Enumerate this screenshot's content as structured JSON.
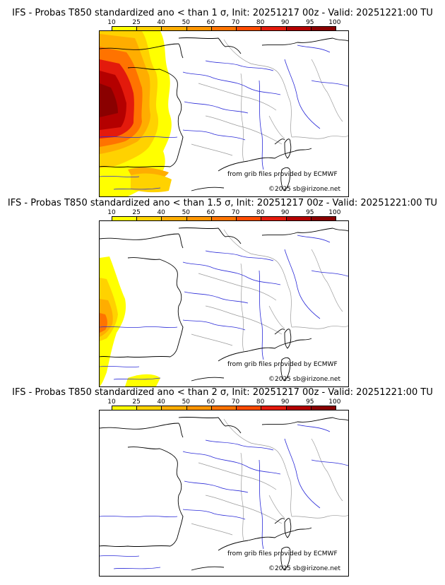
{
  "colorbar": {
    "ticks": [
      "10",
      "25",
      "40",
      "50",
      "60",
      "70",
      "80",
      "90",
      "95",
      "100"
    ],
    "colors": [
      "#ffff00",
      "#ffd200",
      "#ffad00",
      "#ff9500",
      "#ff7300",
      "#ff4b00",
      "#e31a0c",
      "#b40000",
      "#8a0000",
      "#5a0000"
    ]
  },
  "panels": [
    {
      "title": "IFS - Probas T850  standardized ano < than 1 σ, Init: 20251217 00z - Valid: 20251221:00 TU",
      "intensity": "high"
    },
    {
      "title": "IFS - Probas T850  standardized ano < than 1.5 σ, Init: 20251217 00z - Valid: 20251221:00 TU",
      "intensity": "medium"
    },
    {
      "title": "IFS - Probas T850  standardized ano < than 2 σ, Init: 20251217 00z - Valid: 20251221:00 TU",
      "intensity": "low"
    }
  ],
  "credits": {
    "source": "from grib files provided by ECMWF",
    "copyright": "©2025 sb@irizone.net"
  },
  "colors": {
    "coast": "#000000",
    "rivers": "#2a2ad8",
    "borders": "#9a9a9a"
  }
}
